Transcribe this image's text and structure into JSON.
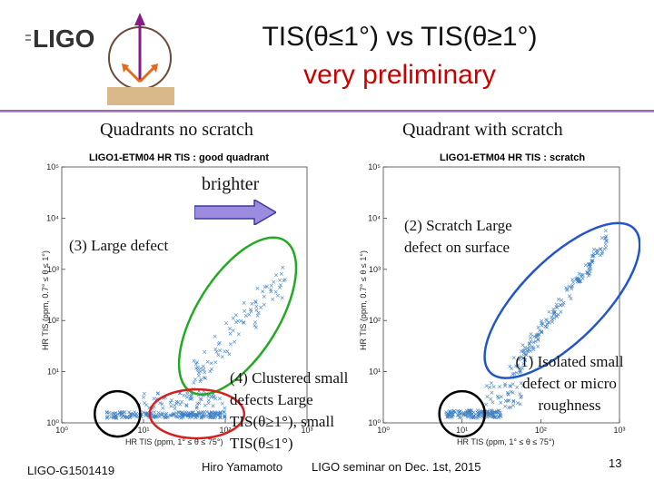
{
  "logo": "LIGO",
  "title_line1": "TIS(θ≤1°) vs TIS(θ≥1°)",
  "title_line2": "very preliminary",
  "accent_red": "#cc0000",
  "label_left": "Quadrants no scratch",
  "label_right": "Quadrant with scratch",
  "brighter": "brighter",
  "footer": {
    "doc_id": "LIGO-G1501419",
    "author": "Hiro Yamamoto",
    "seminar": "LIGO seminar on Dec. 1st, 2015",
    "page": "13"
  },
  "chart_data": [
    {
      "type": "scatter",
      "title": "LIGO1-ETM04 HR TIS : good quadrant",
      "xlabel": "HR TIS (ppm, 1° ≤ θ ≤ 75°)",
      "ylabel": "HR TIS (ppm, 0.7° ≤ θ ≤ 1°)",
      "xscale": "log",
      "yscale": "log",
      "xlim": [
        1,
        1000
      ],
      "ylim": [
        1,
        100000
      ],
      "xticks": [
        "10⁰",
        "10¹",
        "10²",
        "10³"
      ],
      "yticks": [
        "10⁰",
        "10¹",
        "10²",
        "10³",
        "10⁴",
        "10⁵"
      ],
      "series_color": "#3a7fc4",
      "annotations": [
        {
          "text": "(3) Large defect",
          "color": "#22aa22"
        },
        {
          "text": "(4) Clustered small defects Large TIS(θ≥1°), small TIS(θ≤1°)",
          "color": "#d62020"
        }
      ]
    },
    {
      "type": "scatter",
      "title": "LIGO1-ETM04 HR TIS : scratch",
      "xlabel": "HR TIS (ppm, 1° ≤ θ ≤ 75°)",
      "ylabel": "HR TIS (ppm, 0.7° ≤ θ ≤ 1°)",
      "xscale": "log",
      "yscale": "log",
      "xlim": [
        1,
        1000
      ],
      "ylim": [
        1,
        100000
      ],
      "xticks": [
        "10⁰",
        "10¹",
        "10²",
        "10³"
      ],
      "yticks": [
        "10⁰",
        "10¹",
        "10²",
        "10³",
        "10⁴",
        "10⁵"
      ],
      "series_color": "#3a7fc4",
      "annotations": [
        {
          "text": "(2) Scratch Large defect on surface",
          "color": "#2255cc"
        },
        {
          "text": "(1) Isolated small defect or micro roughness",
          "color": "#111111"
        }
      ]
    }
  ]
}
